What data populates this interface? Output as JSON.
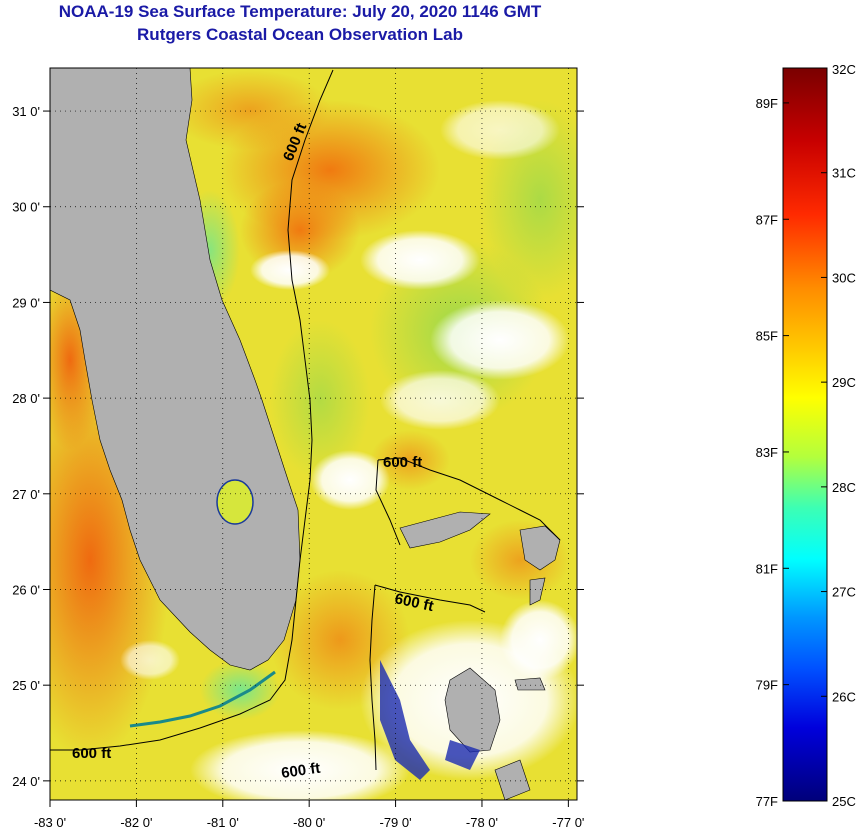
{
  "title": "NOAA-19 Sea Surface Temperature:  July 20, 2020 1146 GMT",
  "subtitle": "Rutgers Coastal Ocean Observation Lab",
  "map": {
    "lon_labels": [
      "-83 0'",
      "-82 0'",
      "-81 0'",
      "-80 0'",
      "-79 0'",
      "-78 0'",
      "-77 0'"
    ],
    "lon_values": [
      -83,
      -82,
      -81,
      -80,
      -79,
      -78,
      -77
    ],
    "lat_labels": [
      "31 0'",
      "30 0'",
      "29 0'",
      "28 0'",
      "27 0'",
      "26 0'",
      "25 0'",
      "24 0'"
    ],
    "lat_values": [
      31,
      30,
      29,
      28,
      27,
      26,
      25,
      24
    ],
    "lon_range": [
      -83,
      -76.9
    ],
    "lat_range": [
      23.8,
      31.45
    ],
    "contour_label": "600 ft",
    "land_color": "#b0b0b0",
    "cloud_color": "#ffffff"
  },
  "colorbar": {
    "top_label": "32C",
    "bottom_label": "25C",
    "celsius_labels": [
      "31C",
      "30C",
      "29C",
      "28C",
      "27C",
      "26C"
    ],
    "celsius_values": [
      31,
      30,
      29,
      28,
      27,
      26
    ],
    "fahrenheit_labels": [
      "89F",
      "87F",
      "85F",
      "83F",
      "81F",
      "79F",
      "77F"
    ],
    "fahrenheit_values": [
      89,
      87,
      85,
      83,
      81,
      79,
      77
    ],
    "range_c": [
      25,
      32
    ]
  }
}
